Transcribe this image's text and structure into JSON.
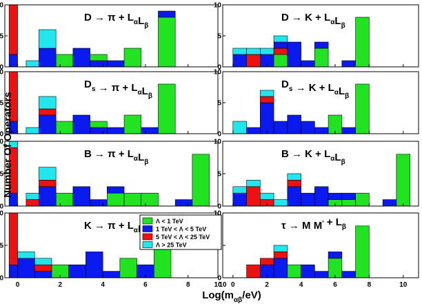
{
  "chart_data": {
    "type": "bar",
    "ylabel": "Number Of Operators",
    "xlabel": {
      "main": "Log(m",
      "sub": "αβ",
      "rest": "/eV)"
    },
    "ylim": [
      0,
      10
    ],
    "y_ticks": [
      "0",
      "5",
      "10"
    ],
    "x_ticks_left": [
      "0",
      "2",
      "4",
      "6",
      "8"
    ],
    "x_ticks_right": [
      "0",
      "2",
      "4",
      "6",
      "8",
      "10"
    ],
    "x_edge_label": "10",
    "colors": {
      "g": "#22e322",
      "b": "#0a1aee",
      "r": "#ee1111",
      "c": "#22e6ee"
    },
    "legend": [
      {
        "key": "g",
        "label": "Λ < 1 TeV"
      },
      {
        "key": "b",
        "label": "1 TeV < Λ < 5 TeV"
      },
      {
        "key": "r",
        "label": "5 TeV < Λ < 25 TeV"
      },
      {
        "key": "c",
        "label": "Λ > 25 TeV"
      }
    ],
    "panels": [
      {
        "title": [
          "D → π + L",
          "α",
          "L",
          "β"
        ],
        "bars": [
          {
            "x": -0.4,
            "w": 0.4,
            "s": [
              [
                "b",
                2
              ],
              [
                "r",
                8
              ]
            ]
          },
          {
            "x": 0.4,
            "w": 0.8,
            "s": [
              [
                "c",
                1
              ]
            ]
          },
          {
            "x": 1.0,
            "w": 0.8,
            "s": [
              [
                "b",
                3
              ],
              [
                "c",
                3
              ]
            ]
          },
          {
            "x": 1.8,
            "w": 0.8,
            "s": [
              [
                "g",
                2
              ]
            ]
          },
          {
            "x": 2.6,
            "w": 0.8,
            "s": [
              [
                "b",
                3
              ]
            ]
          },
          {
            "x": 3.4,
            "w": 0.8,
            "s": [
              [
                "b",
                1
              ],
              [
                "g",
                1
              ]
            ]
          },
          {
            "x": 4.2,
            "w": 0.8,
            "s": [
              [
                "b",
                1
              ]
            ]
          },
          {
            "x": 5.0,
            "w": 0.8,
            "s": [
              [
                "g",
                3
              ]
            ]
          },
          {
            "x": 6.6,
            "w": 0.8,
            "s": [
              [
                "g",
                8
              ],
              [
                "b",
                1
              ]
            ]
          }
        ]
      },
      {
        "title": [
          "D → K + L",
          "α",
          "L",
          "β"
        ],
        "bars": [
          {
            "x": 0.0,
            "w": 0.8,
            "s": [
              [
                "b",
                2
              ],
              [
                "c",
                1
              ]
            ]
          },
          {
            "x": 0.8,
            "w": 0.8,
            "s": [
              [
                "r",
                2
              ],
              [
                "c",
                1
              ]
            ]
          },
          {
            "x": 1.6,
            "w": 0.8,
            "s": [
              [
                "b",
                2
              ],
              [
                "c",
                1
              ]
            ]
          },
          {
            "x": 2.4,
            "w": 0.8,
            "s": [
              [
                "g",
                2
              ],
              [
                "r",
                1
              ],
              [
                "b",
                1
              ],
              [
                "c",
                1
              ]
            ]
          },
          {
            "x": 3.2,
            "w": 0.8,
            "s": [
              [
                "b",
                4
              ]
            ]
          },
          {
            "x": 4.0,
            "w": 0.8,
            "s": [
              [
                "b",
                1
              ]
            ]
          },
          {
            "x": 4.8,
            "w": 0.8,
            "s": [
              [
                "g",
                3
              ],
              [
                "b",
                1
              ]
            ]
          },
          {
            "x": 6.4,
            "w": 0.8,
            "s": [
              [
                "b",
                1
              ]
            ]
          },
          {
            "x": 7.2,
            "w": 0.8,
            "s": [
              [
                "g",
                8
              ]
            ]
          }
        ]
      },
      {
        "title": [
          "D",
          "s",
          " → π + L",
          "α",
          "L",
          "β"
        ],
        "bars": [
          {
            "x": -0.4,
            "w": 0.4,
            "s": [
              [
                "b",
                2
              ],
              [
                "r",
                8
              ]
            ]
          },
          {
            "x": 0.4,
            "w": 0.8,
            "s": [
              [
                "c",
                1
              ]
            ]
          },
          {
            "x": 1.0,
            "w": 0.8,
            "s": [
              [
                "b",
                3
              ],
              [
                "r",
                1
              ],
              [
                "c",
                2
              ]
            ]
          },
          {
            "x": 1.8,
            "w": 0.8,
            "s": [
              [
                "g",
                2
              ]
            ]
          },
          {
            "x": 2.6,
            "w": 0.8,
            "s": [
              [
                "b",
                3
              ]
            ]
          },
          {
            "x": 3.4,
            "w": 0.8,
            "s": [
              [
                "b",
                1
              ],
              [
                "g",
                1
              ]
            ]
          },
          {
            "x": 4.2,
            "w": 0.8,
            "s": [
              [
                "b",
                1
              ]
            ]
          },
          {
            "x": 5.0,
            "w": 0.8,
            "s": [
              [
                "g",
                3
              ]
            ]
          },
          {
            "x": 5.8,
            "w": 0.8,
            "s": [
              [
                "b",
                1
              ]
            ]
          },
          {
            "x": 6.6,
            "w": 0.8,
            "s": [
              [
                "g",
                8
              ]
            ]
          }
        ]
      },
      {
        "title": [
          "D",
          "s",
          " → K + L",
          "α",
          "L",
          "β"
        ],
        "bars": [
          {
            "x": 0.0,
            "w": 0.8,
            "s": [
              [
                "c",
                2
              ]
            ]
          },
          {
            "x": 0.8,
            "w": 0.8,
            "s": [
              [
                "b",
                1
              ]
            ]
          },
          {
            "x": 1.6,
            "w": 0.8,
            "s": [
              [
                "b",
                5
              ],
              [
                "r",
                1
              ],
              [
                "c",
                1
              ]
            ]
          },
          {
            "x": 2.4,
            "w": 0.8,
            "s": [
              [
                "b",
                2
              ]
            ]
          },
          {
            "x": 3.2,
            "w": 0.8,
            "s": [
              [
                "b",
                3
              ]
            ]
          },
          {
            "x": 4.0,
            "w": 0.8,
            "s": [
              [
                "b",
                2
              ]
            ]
          },
          {
            "x": 4.8,
            "w": 0.8,
            "s": [
              [
                "b",
                1
              ]
            ]
          },
          {
            "x": 5.6,
            "w": 0.8,
            "s": [
              [
                "g",
                3
              ]
            ]
          },
          {
            "x": 6.4,
            "w": 0.8,
            "s": [
              [
                "b",
                1
              ]
            ]
          },
          {
            "x": 7.2,
            "w": 0.8,
            "s": [
              [
                "g",
                8
              ]
            ]
          }
        ]
      },
      {
        "title": [
          "B → π + L",
          "α",
          "L",
          "β"
        ],
        "bars": [
          {
            "x": -0.4,
            "w": 0.4,
            "s": [
              [
                "b",
                2
              ],
              [
                "r",
                7
              ],
              [
                "c",
                1
              ]
            ]
          },
          {
            "x": 0.4,
            "w": 0.8,
            "s": [
              [
                "r",
                1
              ],
              [
                "c",
                1
              ]
            ]
          },
          {
            "x": 1.0,
            "w": 0.8,
            "s": [
              [
                "b",
                3
              ],
              [
                "r",
                1
              ],
              [
                "c",
                2
              ]
            ]
          },
          {
            "x": 1.8,
            "w": 0.8,
            "s": [
              [
                "g",
                2
              ]
            ]
          },
          {
            "x": 2.6,
            "w": 0.8,
            "s": [
              [
                "b",
                3
              ]
            ]
          },
          {
            "x": 3.4,
            "w": 0.8,
            "s": [
              [
                "b",
                1
              ]
            ]
          },
          {
            "x": 4.2,
            "w": 0.8,
            "s": [
              [
                "g",
                2
              ],
              [
                "b",
                1
              ]
            ]
          },
          {
            "x": 5.0,
            "w": 0.8,
            "s": [
              [
                "g",
                2
              ]
            ]
          },
          {
            "x": 5.8,
            "w": 0.8,
            "s": [
              [
                "g",
                2
              ]
            ]
          },
          {
            "x": 7.4,
            "w": 0.8,
            "s": [
              [
                "b",
                1
              ]
            ]
          },
          {
            "x": 8.2,
            "w": 0.8,
            "s": [
              [
                "g",
                8
              ]
            ]
          }
        ]
      },
      {
        "title": [
          "B → K + L",
          "α",
          "L",
          "β"
        ],
        "bars": [
          {
            "x": 0.0,
            "w": 0.8,
            "s": [
              [
                "b",
                2
              ],
              [
                "c",
                1
              ]
            ]
          },
          {
            "x": 0.8,
            "w": 0.8,
            "s": [
              [
                "r",
                3
              ],
              [
                "c",
                1
              ]
            ]
          },
          {
            "x": 1.6,
            "w": 0.8,
            "s": [
              [
                "r",
                1
              ],
              [
                "c",
                1
              ]
            ]
          },
          {
            "x": 2.4,
            "w": 0.8,
            "s": [
              [
                "c",
                1
              ]
            ]
          },
          {
            "x": 3.2,
            "w": 0.8,
            "s": [
              [
                "b",
                3
              ],
              [
                "r",
                1
              ],
              [
                "c",
                1
              ]
            ]
          },
          {
            "x": 4.0,
            "w": 0.8,
            "s": [
              [
                "b",
                2
              ]
            ]
          },
          {
            "x": 4.8,
            "w": 0.8,
            "s": [
              [
                "b",
                3
              ]
            ]
          },
          {
            "x": 5.6,
            "w": 0.8,
            "s": [
              [
                "g",
                1
              ],
              [
                "b",
                1
              ]
            ]
          },
          {
            "x": 6.4,
            "w": 0.8,
            "s": [
              [
                "g",
                1
              ],
              [
                "b",
                1
              ]
            ]
          },
          {
            "x": 7.2,
            "w": 0.8,
            "s": [
              [
                "g",
                2
              ]
            ]
          },
          {
            "x": 8.8,
            "w": 0.8,
            "s": [
              [
                "b",
                1
              ]
            ]
          },
          {
            "x": 9.6,
            "w": 0.8,
            "s": [
              [
                "g",
                8
              ]
            ]
          }
        ]
      },
      {
        "title": [
          "K → π + L",
          "α",
          "L",
          "β"
        ],
        "bars": [
          {
            "x": -0.4,
            "w": 0.4,
            "s": [
              [
                "b",
                2
              ],
              [
                "r",
                8
              ]
            ]
          },
          {
            "x": 0.0,
            "w": 0.8,
            "s": [
              [
                "b",
                3
              ],
              [
                "c",
                1
              ]
            ]
          },
          {
            "x": 0.8,
            "w": 0.8,
            "s": [
              [
                "b",
                1
              ],
              [
                "r",
                1
              ],
              [
                "c",
                1
              ]
            ]
          },
          {
            "x": 1.6,
            "w": 0.8,
            "s": [
              [
                "g",
                2
              ]
            ]
          },
          {
            "x": 2.4,
            "w": 0.8,
            "s": [
              [
                "b",
                2
              ]
            ]
          },
          {
            "x": 3.2,
            "w": 0.8,
            "s": [
              [
                "b",
                4
              ]
            ]
          },
          {
            "x": 4.0,
            "w": 0.8,
            "s": [
              [
                "b",
                1
              ]
            ]
          },
          {
            "x": 4.8,
            "w": 0.8,
            "s": [
              [
                "g",
                3
              ]
            ]
          },
          {
            "x": 5.6,
            "w": 0.8,
            "s": [
              [
                "b",
                2
              ]
            ]
          },
          {
            "x": 6.4,
            "w": 0.8,
            "s": [
              [
                "g",
                8
              ]
            ]
          }
        ]
      },
      {
        "title": [
          "τ → M M",
          "′",
          " + L",
          "β"
        ],
        "bars": [
          {
            "x": 0.8,
            "w": 0.8,
            "s": [
              [
                "r",
                2
              ]
            ]
          },
          {
            "x": 1.6,
            "w": 0.8,
            "s": [
              [
                "b",
                2
              ],
              [
                "r",
                1
              ]
            ]
          },
          {
            "x": 2.4,
            "w": 0.8,
            "s": [
              [
                "b",
                3
              ],
              [
                "r",
                1
              ],
              [
                "c",
                1
              ]
            ]
          },
          {
            "x": 3.2,
            "w": 0.8,
            "s": [
              [
                "g",
                2
              ]
            ]
          },
          {
            "x": 4.0,
            "w": 0.8,
            "s": [
              [
                "b",
                2
              ]
            ]
          },
          {
            "x": 4.8,
            "w": 0.8,
            "s": [
              [
                "b",
                1
              ]
            ]
          },
          {
            "x": 5.6,
            "w": 0.8,
            "s": [
              [
                "g",
                3
              ],
              [
                "b",
                1
              ]
            ]
          },
          {
            "x": 6.4,
            "w": 0.8,
            "s": [
              [
                "b",
                1
              ]
            ]
          },
          {
            "x": 7.2,
            "w": 0.8,
            "s": [
              [
                "g",
                8
              ]
            ]
          }
        ]
      }
    ]
  }
}
